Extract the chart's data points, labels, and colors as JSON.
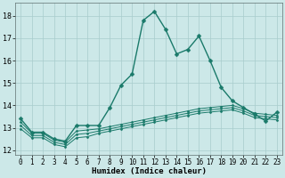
{
  "xlabel": "Humidex (Indice chaleur)",
  "xlim": [
    -0.5,
    23.5
  ],
  "ylim": [
    11.8,
    18.6
  ],
  "yticks": [
    12,
    13,
    14,
    15,
    16,
    17,
    18
  ],
  "xticks": [
    0,
    1,
    2,
    3,
    4,
    5,
    6,
    7,
    8,
    9,
    10,
    11,
    12,
    13,
    14,
    15,
    16,
    17,
    18,
    19,
    20,
    21,
    22,
    23
  ],
  "bg_color": "#cce8e8",
  "grid_color": "#a8cccc",
  "line_color": "#1a7a6a",
  "series": [
    {
      "x": [
        0,
        1,
        2,
        3,
        4,
        5,
        6,
        7,
        8,
        9,
        10,
        11,
        12,
        13,
        14,
        15,
        16,
        17,
        18,
        19,
        20,
        21,
        22,
        23
      ],
      "y": [
        13.4,
        12.8,
        12.8,
        12.5,
        12.4,
        13.1,
        13.1,
        13.1,
        13.9,
        14.9,
        15.4,
        17.8,
        18.2,
        17.4,
        16.3,
        16.5,
        17.1,
        16.0,
        14.8,
        14.2,
        13.9,
        13.6,
        13.3,
        13.7
      ],
      "marker": "D",
      "markersize": 2.5,
      "linewidth": 1.0
    },
    {
      "x": [
        0,
        1,
        2,
        3,
        4,
        5,
        6,
        7,
        8,
        9,
        10,
        11,
        12,
        13,
        14,
        15,
        16,
        17,
        18,
        19,
        20,
        21,
        22,
        23
      ],
      "y": [
        13.25,
        12.75,
        12.75,
        12.45,
        12.35,
        12.85,
        12.9,
        12.95,
        13.05,
        13.15,
        13.25,
        13.35,
        13.45,
        13.55,
        13.65,
        13.75,
        13.85,
        13.9,
        13.95,
        14.0,
        13.85,
        13.65,
        13.6,
        13.55
      ],
      "marker": "D",
      "markersize": 1.5,
      "linewidth": 0.7
    },
    {
      "x": [
        0,
        1,
        2,
        3,
        4,
        5,
        6,
        7,
        8,
        9,
        10,
        11,
        12,
        13,
        14,
        15,
        16,
        17,
        18,
        19,
        20,
        21,
        22,
        23
      ],
      "y": [
        13.1,
        12.65,
        12.65,
        12.35,
        12.25,
        12.7,
        12.75,
        12.85,
        12.95,
        13.05,
        13.15,
        13.25,
        13.35,
        13.45,
        13.55,
        13.65,
        13.75,
        13.8,
        13.85,
        13.9,
        13.75,
        13.55,
        13.5,
        13.45
      ],
      "marker": "D",
      "markersize": 1.5,
      "linewidth": 0.7
    },
    {
      "x": [
        0,
        1,
        2,
        3,
        4,
        5,
        6,
        7,
        8,
        9,
        10,
        11,
        12,
        13,
        14,
        15,
        16,
        17,
        18,
        19,
        20,
        21,
        22,
        23
      ],
      "y": [
        12.95,
        12.55,
        12.55,
        12.25,
        12.15,
        12.55,
        12.6,
        12.75,
        12.85,
        12.95,
        13.05,
        13.15,
        13.25,
        13.35,
        13.45,
        13.55,
        13.65,
        13.7,
        13.75,
        13.8,
        13.65,
        13.45,
        13.4,
        13.35
      ],
      "marker": "D",
      "markersize": 1.5,
      "linewidth": 0.7
    }
  ]
}
